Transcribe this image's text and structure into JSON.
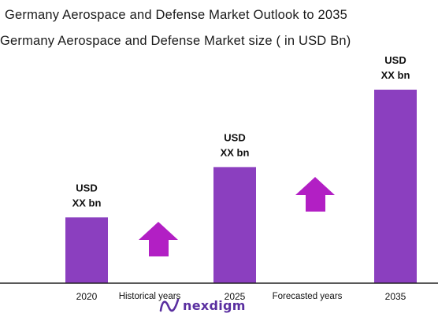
{
  "header": {
    "title": "Germany Aerospace and Defense Market Outlook to 2035",
    "subtitle": "Germany Aerospace and Defense Market size ( in USD Bn)"
  },
  "chart_data": {
    "type": "bar",
    "categories": [
      "2020",
      "2025",
      "2035"
    ],
    "values": [
      34,
      60,
      100
    ],
    "value_labels": [
      {
        "line1": "USD",
        "line2": "XX bn"
      },
      {
        "line1": "USD",
        "line2": "XX bn"
      },
      {
        "line1": "USD",
        "line2": "XX bn"
      }
    ],
    "annotations": [
      "Historical years",
      "Forecasted years"
    ],
    "bar_color": "#8b3fbf",
    "arrow_color": "#b21fc4",
    "grid": false
  },
  "logo": {
    "text": "nexdigm",
    "icon": "nexdigm-logo-icon",
    "color": "#5a2fa0"
  }
}
